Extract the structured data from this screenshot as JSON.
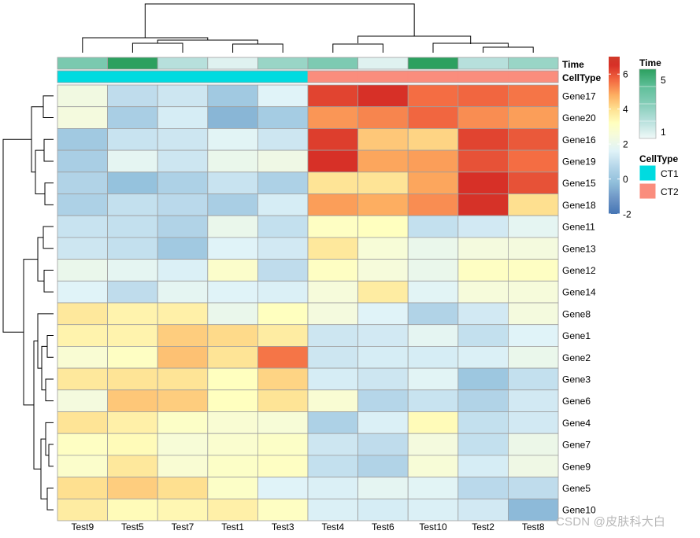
{
  "chart_data": {
    "type": "heatmap",
    "title": "",
    "columns": [
      "Test9",
      "Test5",
      "Test7",
      "Test1",
      "Test3",
      "Test4",
      "Test6",
      "Test10",
      "Test2",
      "Test8"
    ],
    "rows": [
      "Gene17",
      "Gene20",
      "Gene16",
      "Gene19",
      "Gene15",
      "Gene18",
      "Gene11",
      "Gene13",
      "Gene12",
      "Gene14",
      "Gene8",
      "Gene1",
      "Gene2",
      "Gene3",
      "Gene6",
      "Gene4",
      "Gene7",
      "Gene9",
      "Gene5",
      "Gene10"
    ],
    "values": [
      [
        2.3,
        0.9,
        1.2,
        0.2,
        1.6,
        6.2,
        6.5,
        5.6,
        5.7,
        5.5
      ],
      [
        2.4,
        0.4,
        1.4,
        -0.4,
        0.3,
        5.1,
        5.3,
        5.7,
        5.2,
        5.0
      ],
      [
        0.2,
        1.1,
        1.2,
        1.7,
        1.2,
        6.3,
        4.4,
        4.2,
        6.2,
        5.9
      ],
      [
        0.4,
        1.8,
        1.2,
        2.0,
        2.2,
        6.5,
        4.9,
        5.0,
        6.0,
        5.6
      ],
      [
        0.6,
        -0.1,
        0.5,
        1.1,
        0.5,
        3.9,
        3.9,
        4.9,
        6.5,
        6.0
      ],
      [
        0.5,
        1.0,
        0.8,
        0.4,
        1.4,
        5.0,
        4.8,
        5.2,
        6.6,
        4.0
      ],
      [
        1.1,
        1.0,
        0.6,
        2.0,
        1.0,
        3.1,
        3.2,
        1.0,
        1.3,
        1.8
      ],
      [
        1.2,
        1.0,
        0.2,
        1.6,
        1.3,
        3.8,
        2.6,
        2.0,
        2.4,
        2.4
      ],
      [
        2.0,
        1.8,
        1.5,
        2.9,
        0.9,
        3.1,
        2.5,
        2.0,
        3.1,
        3.1
      ],
      [
        1.6,
        0.9,
        1.8,
        1.6,
        1.5,
        2.5,
        3.7,
        1.7,
        2.5,
        2.5
      ],
      [
        3.8,
        3.5,
        3.6,
        2.0,
        3.2,
        2.4,
        1.6,
        0.6,
        1.3,
        2.4
      ],
      [
        3.5,
        3.5,
        4.3,
        4.1,
        3.7,
        1.2,
        1.3,
        1.8,
        1.0,
        1.6
      ],
      [
        2.7,
        3.1,
        4.5,
        3.9,
        5.5,
        1.2,
        1.4,
        1.4,
        1.5,
        2.0
      ],
      [
        3.8,
        3.9,
        3.9,
        3.2,
        4.2,
        1.4,
        1.2,
        1.7,
        0.1,
        1.0
      ],
      [
        2.4,
        4.4,
        4.3,
        3.2,
        3.9,
        2.7,
        0.7,
        1.1,
        0.6,
        1.3
      ],
      [
        3.9,
        3.6,
        3.0,
        2.7,
        2.6,
        0.5,
        1.5,
        3.3,
        1.0,
        1.3
      ],
      [
        3.1,
        3.3,
        2.6,
        2.8,
        3.0,
        1.2,
        0.9,
        2.4,
        1.0,
        2.1
      ],
      [
        2.9,
        3.8,
        2.7,
        3.0,
        3.1,
        1.0,
        0.6,
        2.6,
        1.4,
        2.2
      ],
      [
        4.0,
        4.3,
        4.0,
        3.0,
        1.6,
        1.5,
        1.8,
        1.7,
        0.8,
        0.9
      ],
      [
        3.7,
        3.3,
        3.4,
        3.6,
        3.1,
        1.5,
        1.4,
        1.5,
        1.3,
        -0.3
      ]
    ],
    "color_scale": {
      "min": -2,
      "max": 7,
      "ticks": [
        6,
        4,
        2,
        0,
        -2
      ],
      "stops": [
        [
          -2.0,
          "#4575b4"
        ],
        [
          -1.1,
          "#6e96c6"
        ],
        [
          -0.2,
          "#91bfdb"
        ],
        [
          0.7,
          "#b5d6e9"
        ],
        [
          1.6,
          "#e0f3f8"
        ],
        [
          2.5,
          "#f6fbdb"
        ],
        [
          3.2,
          "#ffffbf"
        ],
        [
          4.0,
          "#fee090"
        ],
        [
          4.8,
          "#fdae61"
        ],
        [
          5.6,
          "#f46d43"
        ],
        [
          6.5,
          "#d73027"
        ],
        [
          7.0,
          "#d03a2a"
        ]
      ]
    },
    "annotations": {
      "time_label": "Time",
      "celltype_label": "CellType",
      "time_values": [
        3.3,
        5,
        2,
        1.3,
        2.6,
        3.2,
        1.3,
        5,
        2,
        2.6
      ],
      "celltype_values": [
        "CT1",
        "CT1",
        "CT1",
        "CT1",
        "CT1",
        "CT2",
        "CT2",
        "CT2",
        "CT2",
        "CT2"
      ],
      "time_palette": [
        [
          1,
          "#f0f9f8"
        ],
        [
          2,
          "#b7e0dc"
        ],
        [
          3,
          "#85cdb8"
        ],
        [
          4,
          "#5fbf99"
        ],
        [
          5,
          "#2ca05f"
        ]
      ],
      "celltype_colors": {
        "CT1": "#00dbe0",
        "CT2": "#fa8d7d"
      }
    },
    "legend": {
      "time_title": "Time",
      "time_tick_top": "5",
      "time_tick_bottom": "1",
      "celltype_title": "CellType",
      "celltype_items": [
        "CT1",
        "CT2"
      ]
    },
    "dendrogram_col_order": [
      "Test9",
      "Test5",
      "Test7",
      "Test1",
      "Test3",
      "Test4",
      "Test6",
      "Test10",
      "Test2",
      "Test8"
    ]
  },
  "watermark": "CSDN @皮肤科大白"
}
